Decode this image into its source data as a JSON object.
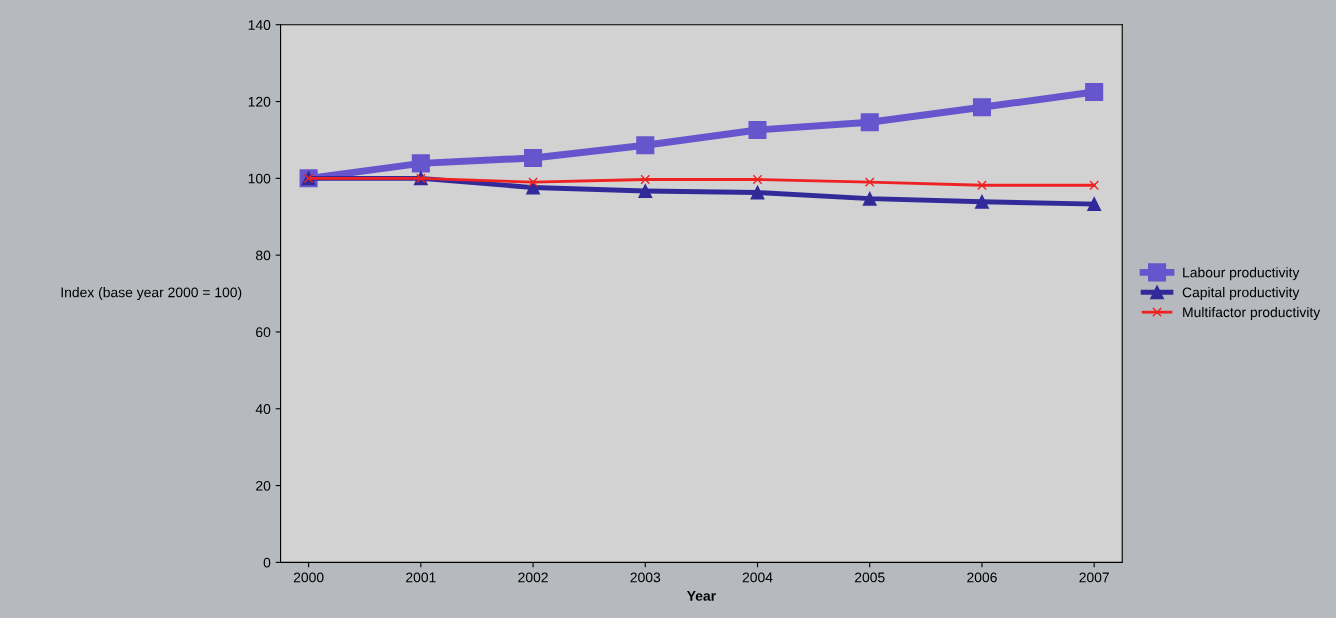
{
  "chart_data": {
    "type": "line",
    "xlabel": "Year",
    "ylabel": "Index (base year 2000 = 100)",
    "categories": [
      "2000",
      "2001",
      "2002",
      "2003",
      "2004",
      "2005",
      "2006",
      "2007"
    ],
    "series": [
      {
        "name": "Labour productivity",
        "color": "#6655cc",
        "marker": "square",
        "values": [
          100,
          103.9,
          105.3,
          108.6,
          112.6,
          114.6,
          118.5,
          122.5
        ]
      },
      {
        "name": "Capital productivity",
        "color": "#332a99",
        "marker": "triangle",
        "values": [
          100,
          100,
          97.6,
          96.7,
          96.3,
          94.7,
          93.9,
          93.3
        ]
      },
      {
        "name": "Multifactor productivity",
        "color": "#ee2222",
        "marker": "cross",
        "values": [
          100,
          100,
          99,
          99.7,
          99.7,
          99,
          98.2,
          98.2
        ]
      }
    ],
    "ylim": [
      0,
      140
    ],
    "yticks": [
      0,
      20,
      40,
      60,
      80,
      100,
      120,
      140
    ],
    "grid": false,
    "legend": "right"
  }
}
